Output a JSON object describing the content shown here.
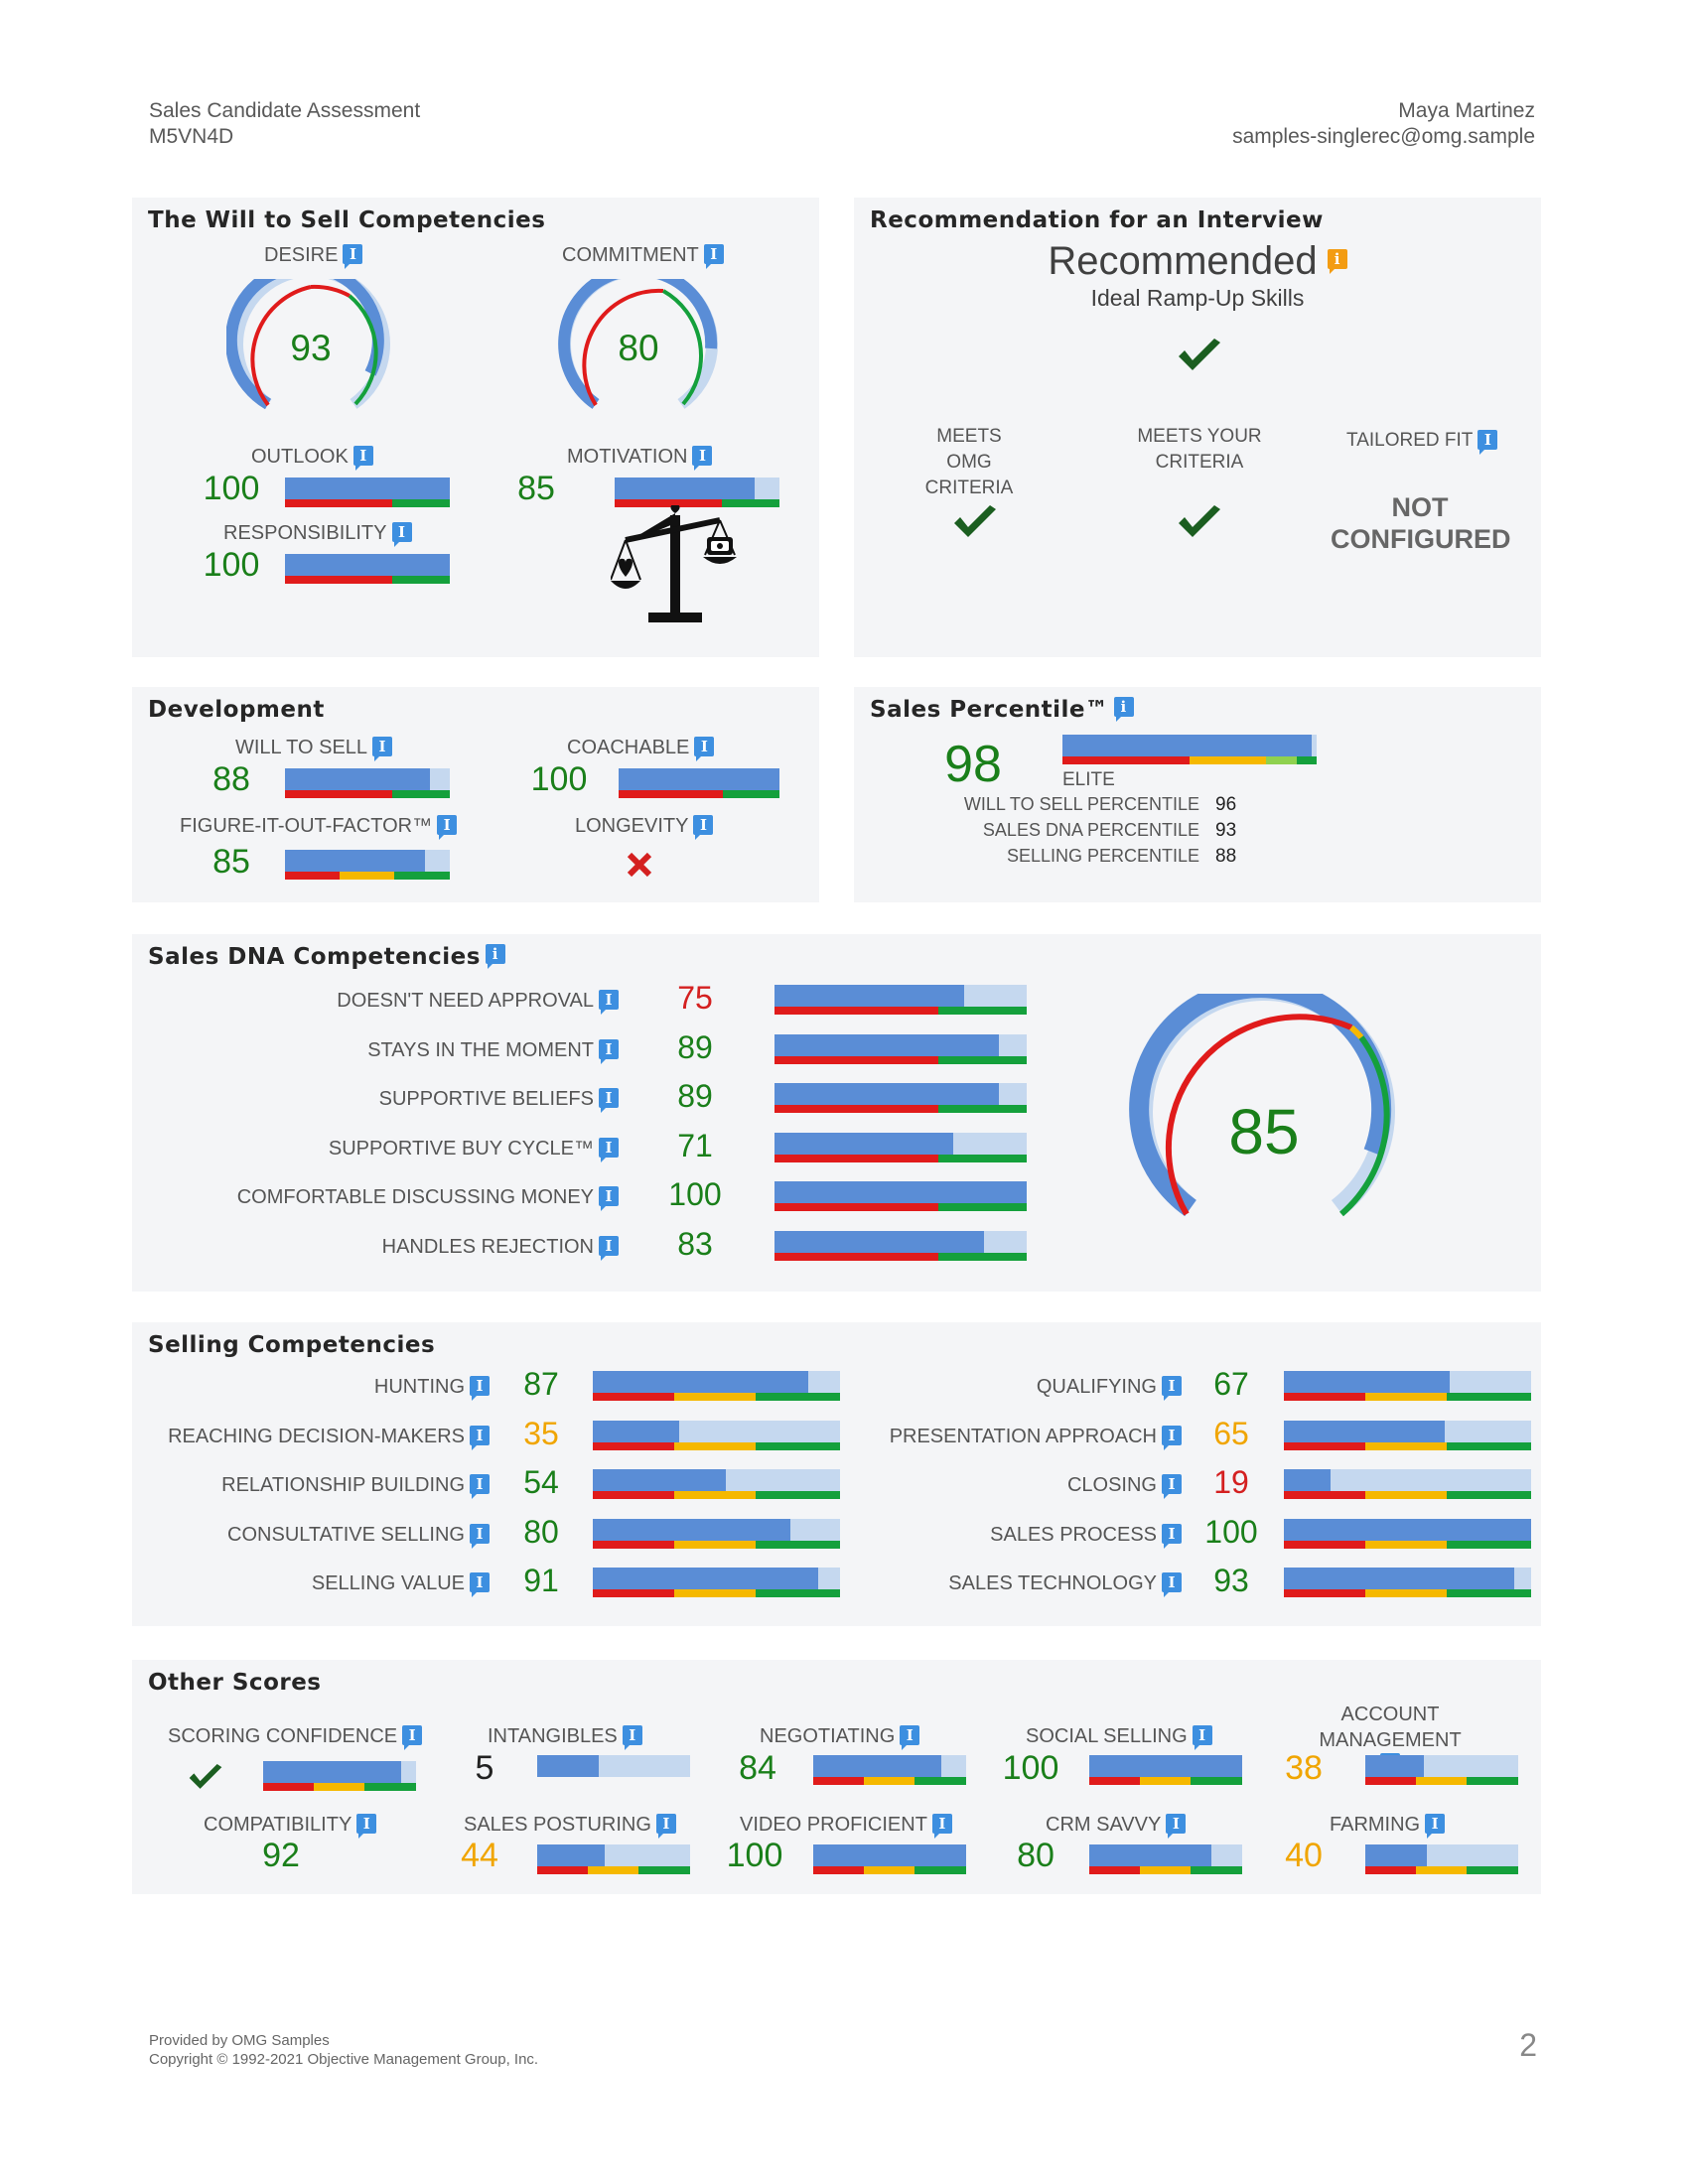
{
  "header": {
    "title": "Sales Candidate Assessment",
    "code": "M5VN4D",
    "name": "Maya Martinez",
    "email": "samples-singlerec@omg.sample"
  },
  "will_to_sell": {
    "title": "The Will to Sell Competencies",
    "desire": {
      "label": "DESIRE",
      "value": "93"
    },
    "commitment": {
      "label": "COMMITMENT",
      "value": "80"
    },
    "outlook": {
      "label": "OUTLOOK",
      "value": "100",
      "pct": 100
    },
    "motivation": {
      "label": "MOTIVATION",
      "value": "85",
      "pct": 85
    },
    "responsibility": {
      "label": "RESPONSIBILITY",
      "value": "100",
      "pct": 100
    },
    "scale_icon": "balance-scale-heart-money-icon"
  },
  "recommendation": {
    "title": "Recommendation for an Interview",
    "status": "Recommended",
    "subtitle": "Ideal Ramp-Up Skills",
    "meets_omg": "MEETS OMG CRITERIA",
    "meets_yours": "MEETS YOUR CRITERIA",
    "tailored": "TAILORED FIT",
    "not_configured": "NOT CONFIGURED"
  },
  "development": {
    "title": "Development",
    "will_to_sell": {
      "label": "WILL TO SELL",
      "value": "88",
      "pct": 88
    },
    "coachable": {
      "label": "COACHABLE",
      "value": "100",
      "pct": 100
    },
    "figure_it_out": {
      "label": "FIGURE-IT-OUT-FACTOR™",
      "value": "85",
      "pct": 85
    },
    "longevity": {
      "label": "LONGEVITY",
      "icon": "x-icon"
    }
  },
  "percentile": {
    "title": "Sales Percentile™",
    "value": "98",
    "pct": 98,
    "tier": "ELITE",
    "rows": [
      {
        "label": "WILL TO SELL PERCENTILE",
        "value": "96"
      },
      {
        "label": "SALES DNA PERCENTILE",
        "value": "93"
      },
      {
        "label": "SELLING PERCENTILE",
        "value": "88"
      }
    ]
  },
  "sales_dna": {
    "title": "Sales DNA Competencies",
    "overall": "85",
    "items": [
      {
        "label": "DOESN'T NEED APPROVAL",
        "value": "75",
        "pct": 75,
        "color": "r"
      },
      {
        "label": "STAYS IN THE MOMENT",
        "value": "89",
        "pct": 89,
        "color": "g"
      },
      {
        "label": "SUPPORTIVE BELIEFS",
        "value": "89",
        "pct": 89,
        "color": "g"
      },
      {
        "label": "SUPPORTIVE BUY CYCLE™",
        "value": "71",
        "pct": 71,
        "color": "g"
      },
      {
        "label": "COMFORTABLE DISCUSSING MONEY",
        "value": "100",
        "pct": 100,
        "color": "g"
      },
      {
        "label": "HANDLES REJECTION",
        "value": "83",
        "pct": 83,
        "color": "g"
      }
    ]
  },
  "selling": {
    "title": "Selling Competencies",
    "left": [
      {
        "label": "HUNTING",
        "value": "87",
        "pct": 87,
        "color": "g"
      },
      {
        "label": "REACHING DECISION-MAKERS",
        "value": "35",
        "pct": 35,
        "color": "y"
      },
      {
        "label": "RELATIONSHIP BUILDING",
        "value": "54",
        "pct": 54,
        "color": "g"
      },
      {
        "label": "CONSULTATIVE SELLING",
        "value": "80",
        "pct": 80,
        "color": "g"
      },
      {
        "label": "SELLING VALUE",
        "value": "91",
        "pct": 91,
        "color": "g"
      }
    ],
    "right": [
      {
        "label": "QUALIFYING",
        "value": "67",
        "pct": 67,
        "color": "g"
      },
      {
        "label": "PRESENTATION APPROACH",
        "value": "65",
        "pct": 65,
        "color": "y"
      },
      {
        "label": "CLOSING",
        "value": "19",
        "pct": 19,
        "color": "r"
      },
      {
        "label": "SALES PROCESS",
        "value": "100",
        "pct": 100,
        "color": "g"
      },
      {
        "label": "SALES TECHNOLOGY",
        "value": "93",
        "pct": 93,
        "color": "g"
      }
    ]
  },
  "other": {
    "title": "Other Scores",
    "scoring_confidence": {
      "label": "SCORING CONFIDENCE",
      "pct": 90
    },
    "intangibles": {
      "label": "INTANGIBLES",
      "value": "5",
      "pct": 40
    },
    "negotiating": {
      "label": "NEGOTIATING",
      "value": "84",
      "pct": 84
    },
    "social_selling": {
      "label": "SOCIAL SELLING",
      "value": "100",
      "pct": 100
    },
    "account_management": {
      "label": "ACCOUNT MANAGEMENT",
      "value": "38",
      "pct": 38
    },
    "compatibility": {
      "label": "COMPATIBILITY",
      "value": "92"
    },
    "sales_posturing": {
      "label": "SALES POSTURING",
      "value": "44",
      "pct": 44
    },
    "video_proficient": {
      "label": "VIDEO PROFICIENT",
      "value": "100",
      "pct": 100
    },
    "crm_savvy": {
      "label": "CRM SAVVY",
      "value": "80",
      "pct": 80
    },
    "farming": {
      "label": "FARMING",
      "value": "40",
      "pct": 40
    }
  },
  "footer": {
    "provided": "Provided by OMG Samples",
    "copyright": "Copyright © 1992-2021 Objective Management Group, Inc.",
    "page": "2"
  },
  "colors": {
    "blue": "#5a8dd6",
    "light_blue": "#c5d8ef",
    "red": "#e01b1b",
    "green": "#14a03c",
    "yellow": "#f5b800"
  }
}
